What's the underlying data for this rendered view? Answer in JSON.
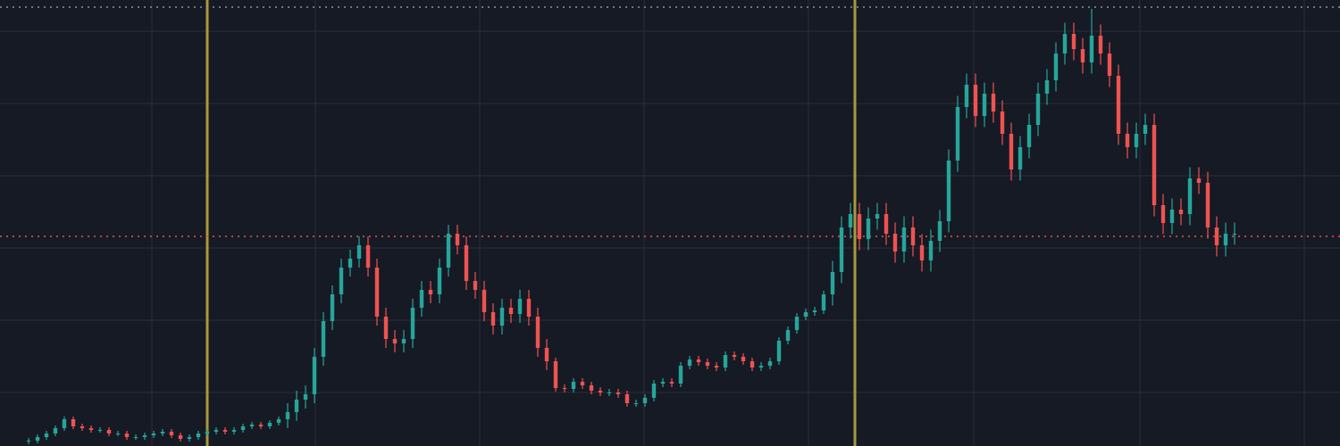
{
  "chart_data": {
    "type": "candlestick",
    "background": "#161a25",
    "grid": true,
    "grid_color": "#2a2e39",
    "up_color": "#26a69a",
    "down_color": "#ef5350",
    "xlim": [
      -3.2,
      146.8
    ],
    "ylim": [
      0,
      100
    ],
    "xticks": [
      13.8,
      32.1,
      50.5,
      68.9,
      87.3,
      105.8,
      124.4,
      142.8
    ],
    "yticks": [
      12,
      28.2,
      44.4,
      60.6,
      76.8,
      93
    ],
    "vlines": [
      {
        "x": 20,
        "color": "#a89a3c"
      },
      {
        "x": 92.5,
        "color": "#a89a3c"
      }
    ],
    "hlines": [
      {
        "y": 47,
        "color": "#ef5350",
        "style": "dotted"
      },
      {
        "y": 98.4,
        "color": "#8a93a6",
        "style": "dotted"
      }
    ],
    "open": [
      1,
      1.2,
      2,
      2.8,
      4,
      6,
      4.4,
      4,
      3.6,
      3.6,
      2.8,
      2.8,
      2,
      2,
      2.4,
      2.8,
      3.2,
      2.4,
      1.6,
      2,
      2.8,
      3.2,
      3.6,
      3.2,
      3.6,
      4.4,
      4.8,
      4.4,
      5.2,
      6,
      7.6,
      10.4,
      11.6,
      20,
      28,
      34,
      40,
      42,
      45,
      40,
      29,
      24,
      23,
      24,
      31,
      35,
      34,
      40,
      47.6,
      45,
      37,
      35,
      30,
      27,
      31,
      29.6,
      33,
      29,
      22,
      19,
      13,
      12.8,
      14.4,
      13.6,
      12.4,
      12,
      12,
      11.6,
      9.6,
      9.6,
      10.8,
      14,
      14.4,
      14,
      18,
      19.4,
      18.8,
      18,
      17.6,
      20.4,
      20,
      19,
      17.6,
      18,
      19,
      23.6,
      26,
      29,
      30,
      30.4,
      34,
      39,
      49,
      52,
      46.4,
      51,
      52,
      47.6,
      43.6,
      49,
      45,
      41.6,
      46,
      50.4,
      64,
      76,
      81,
      74,
      79,
      75,
      70,
      62,
      67,
      72,
      79,
      82,
      88,
      92.4,
      89,
      86,
      92,
      88,
      83,
      70,
      67,
      70,
      72,
      54,
      50,
      53,
      52,
      60,
      59,
      49,
      45,
      47.6
    ],
    "high": [
      1.8,
      2.6,
      3.4,
      4.6,
      6.6,
      6.6,
      5,
      4.6,
      4.2,
      4.2,
      3.4,
      3.4,
      2.6,
      3,
      3.4,
      3.8,
      3.8,
      3,
      2.6,
      3.4,
      3.8,
      4.2,
      4.2,
      4.2,
      5,
      5.4,
      5.4,
      5.8,
      6.6,
      9.6,
      12.4,
      13.6,
      22,
      30,
      36,
      42,
      44,
      47,
      47,
      42,
      31,
      26,
      26,
      33,
      37,
      37,
      42,
      49.6,
      49.6,
      47,
      39,
      37,
      32,
      33,
      33,
      35,
      35,
      31,
      24,
      19.8,
      13.8,
      15.2,
      15.2,
      14.4,
      13.2,
      12.8,
      12.8,
      12.4,
      10.4,
      11.6,
      14.8,
      15.2,
      15.2,
      18.8,
      20.2,
      20.2,
      19.6,
      18.8,
      21.2,
      21.2,
      20.8,
      19.8,
      18.8,
      19.8,
      24.4,
      26.8,
      29.8,
      30.8,
      31.2,
      34.8,
      41.5,
      51.5,
      54.5,
      54.5,
      53.5,
      54.5,
      54.5,
      50.1,
      51.5,
      51.5,
      47.5,
      48.5,
      52.9,
      66.5,
      78.5,
      83.5,
      83.5,
      81.5,
      81.5,
      77.5,
      72.5,
      69.5,
      74.5,
      81.5,
      84.5,
      90.5,
      94.9,
      94.9,
      91.5,
      98,
      94.5,
      90.5,
      85.5,
      72.5,
      72.5,
      74.5,
      74.5,
      56.5,
      55.5,
      55.5,
      62.5,
      62.5,
      61.5,
      51.5,
      50.1,
      50.1
    ],
    "low": [
      0.4,
      0.6,
      1.4,
      2.2,
      3.4,
      3.8,
      3.4,
      3,
      3,
      2.2,
      2.2,
      1.4,
      1.4,
      1.4,
      1.8,
      2.2,
      1.8,
      1,
      1,
      1.4,
      2.2,
      2.6,
      2.6,
      2.6,
      3,
      3.8,
      3.8,
      3.8,
      4.6,
      4,
      5.6,
      8.4,
      9.6,
      18,
      26,
      32,
      38,
      40,
      38,
      27,
      22,
      21,
      21,
      22,
      29,
      32,
      32,
      38,
      43,
      35,
      33,
      28,
      25,
      25,
      27.6,
      27.6,
      27,
      20,
      17,
      12.2,
      12,
      12,
      12.8,
      11.6,
      11.2,
      11.2,
      10.8,
      8.8,
      8.8,
      8.8,
      10,
      13.2,
      13.2,
      13.2,
      17.2,
      18,
      17.2,
      16.8,
      16.8,
      19.2,
      18.2,
      16.8,
      16.8,
      17.2,
      18.2,
      22.8,
      25.2,
      28.2,
      29.2,
      29.6,
      31.5,
      36.5,
      46.5,
      43.9,
      43.9,
      48.5,
      45.1,
      41.1,
      41.1,
      42.5,
      39.1,
      39.1,
      43.5,
      47.9,
      61.5,
      73.5,
      71.5,
      71.5,
      72.5,
      67.5,
      59.5,
      59.5,
      64.5,
      69.5,
      76.5,
      79.5,
      85.5,
      86.5,
      83.5,
      83.5,
      85.5,
      80.5,
      67.5,
      64.5,
      64.5,
      67.5,
      51.5,
      47.5,
      47.5,
      49.5,
      49.5,
      56.5,
      46.5,
      42.5,
      42.5,
      45.1
    ],
    "close": [
      1.2,
      2,
      2.8,
      4,
      6,
      4.4,
      4,
      3.6,
      3.6,
      2.8,
      2.8,
      2,
      2,
      2.4,
      2.8,
      3.2,
      2.4,
      1.6,
      2,
      2.8,
      3.2,
      3.6,
      3.2,
      3.6,
      4.4,
      4.8,
      4.4,
      5.2,
      6,
      7.6,
      10.4,
      11.6,
      20,
      28,
      34,
      40,
      42,
      45,
      40,
      29,
      24,
      23,
      24,
      31,
      35,
      34,
      40,
      47.6,
      45,
      37,
      35,
      30,
      27,
      31,
      29.6,
      33,
      29,
      22,
      19,
      13,
      12.8,
      14.4,
      13.6,
      12.4,
      12,
      12,
      11.6,
      9.6,
      9.6,
      10.8,
      14,
      14.4,
      14,
      18,
      19.4,
      18.8,
      18,
      17.6,
      20.4,
      20,
      19,
      17.6,
      18,
      19,
      23.6,
      26,
      29,
      30,
      30.4,
      34,
      39,
      49,
      52,
      46.4,
      51,
      52,
      47.6,
      43.6,
      49,
      45,
      41.6,
      46,
      50.4,
      64,
      76,
      81,
      74,
      79,
      75,
      70,
      62,
      67,
      72,
      79,
      82,
      88,
      92.4,
      89,
      86,
      92,
      88,
      83,
      70,
      67,
      70,
      72,
      54,
      50,
      53,
      52,
      60,
      59,
      49,
      45,
      47.6,
      47.6
    ]
  }
}
